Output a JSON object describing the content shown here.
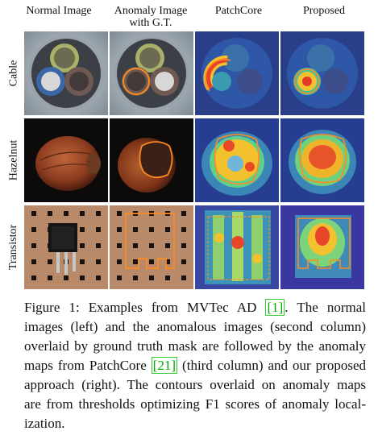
{
  "columns": [
    {
      "lines": [
        "Normal Image"
      ]
    },
    {
      "lines": [
        "Anomaly Image",
        "with G.T."
      ]
    },
    {
      "lines": [
        "PatchCore"
      ]
    },
    {
      "lines": [
        "Proposed"
      ]
    }
  ],
  "rows": [
    "Cable",
    "Hazelnut",
    "Transistor"
  ],
  "caption": {
    "lines": [
      [
        "Figure 1: Examples from MVTec AD ",
        "[1]",
        ". The normal"
      ],
      [
        "images (left) and the anomalous images (second column)"
      ],
      [
        "overlaid by ground truth mask are followed by the anomaly"
      ],
      [
        "maps from PatchCore ",
        "[21]",
        " (third column) and our proposed"
      ],
      [
        "approach (right). The contours overlaid on anomaly maps"
      ],
      [
        "are from thresholds optimizing F1 scores of anomaly local-"
      ],
      [
        "ization."
      ]
    ]
  }
}
